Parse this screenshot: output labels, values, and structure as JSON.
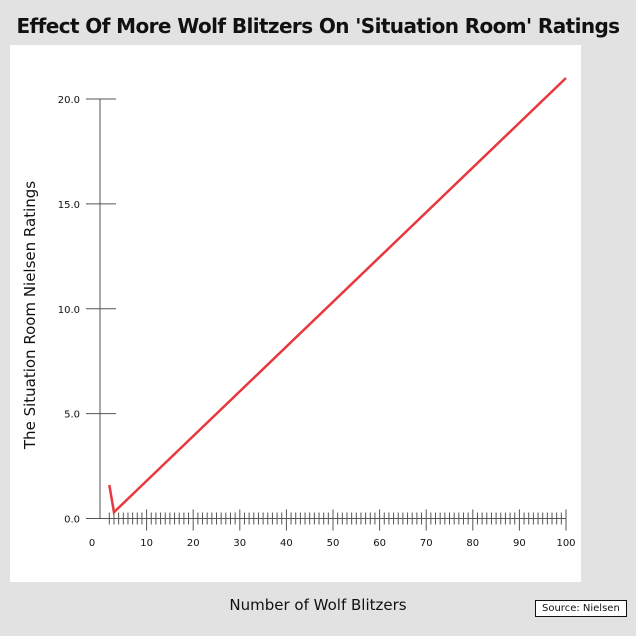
{
  "chart_data": {
    "type": "line",
    "title": "Effect Of More Wolf Blitzers On 'Situation Room' Ratings",
    "xlabel": "Number of Wolf Blitzers",
    "ylabel": "The Situation Room Nielsen Ratings",
    "source": "Source: Nielsen",
    "xlim": [
      0,
      100
    ],
    "ylim": [
      0,
      20
    ],
    "x_ticks": [
      "0",
      "10",
      "20",
      "30",
      "40",
      "50",
      "60",
      "70",
      "80",
      "90",
      "100"
    ],
    "y_ticks": [
      "0.0",
      "5.0",
      "10.0",
      "15.0",
      "20.0"
    ],
    "grid": false,
    "legend": "none",
    "series": [
      {
        "color": "#e8383d",
        "x": [
          2,
          3,
          100
        ],
        "y": [
          1.6,
          0.3,
          21.0
        ]
      }
    ]
  }
}
